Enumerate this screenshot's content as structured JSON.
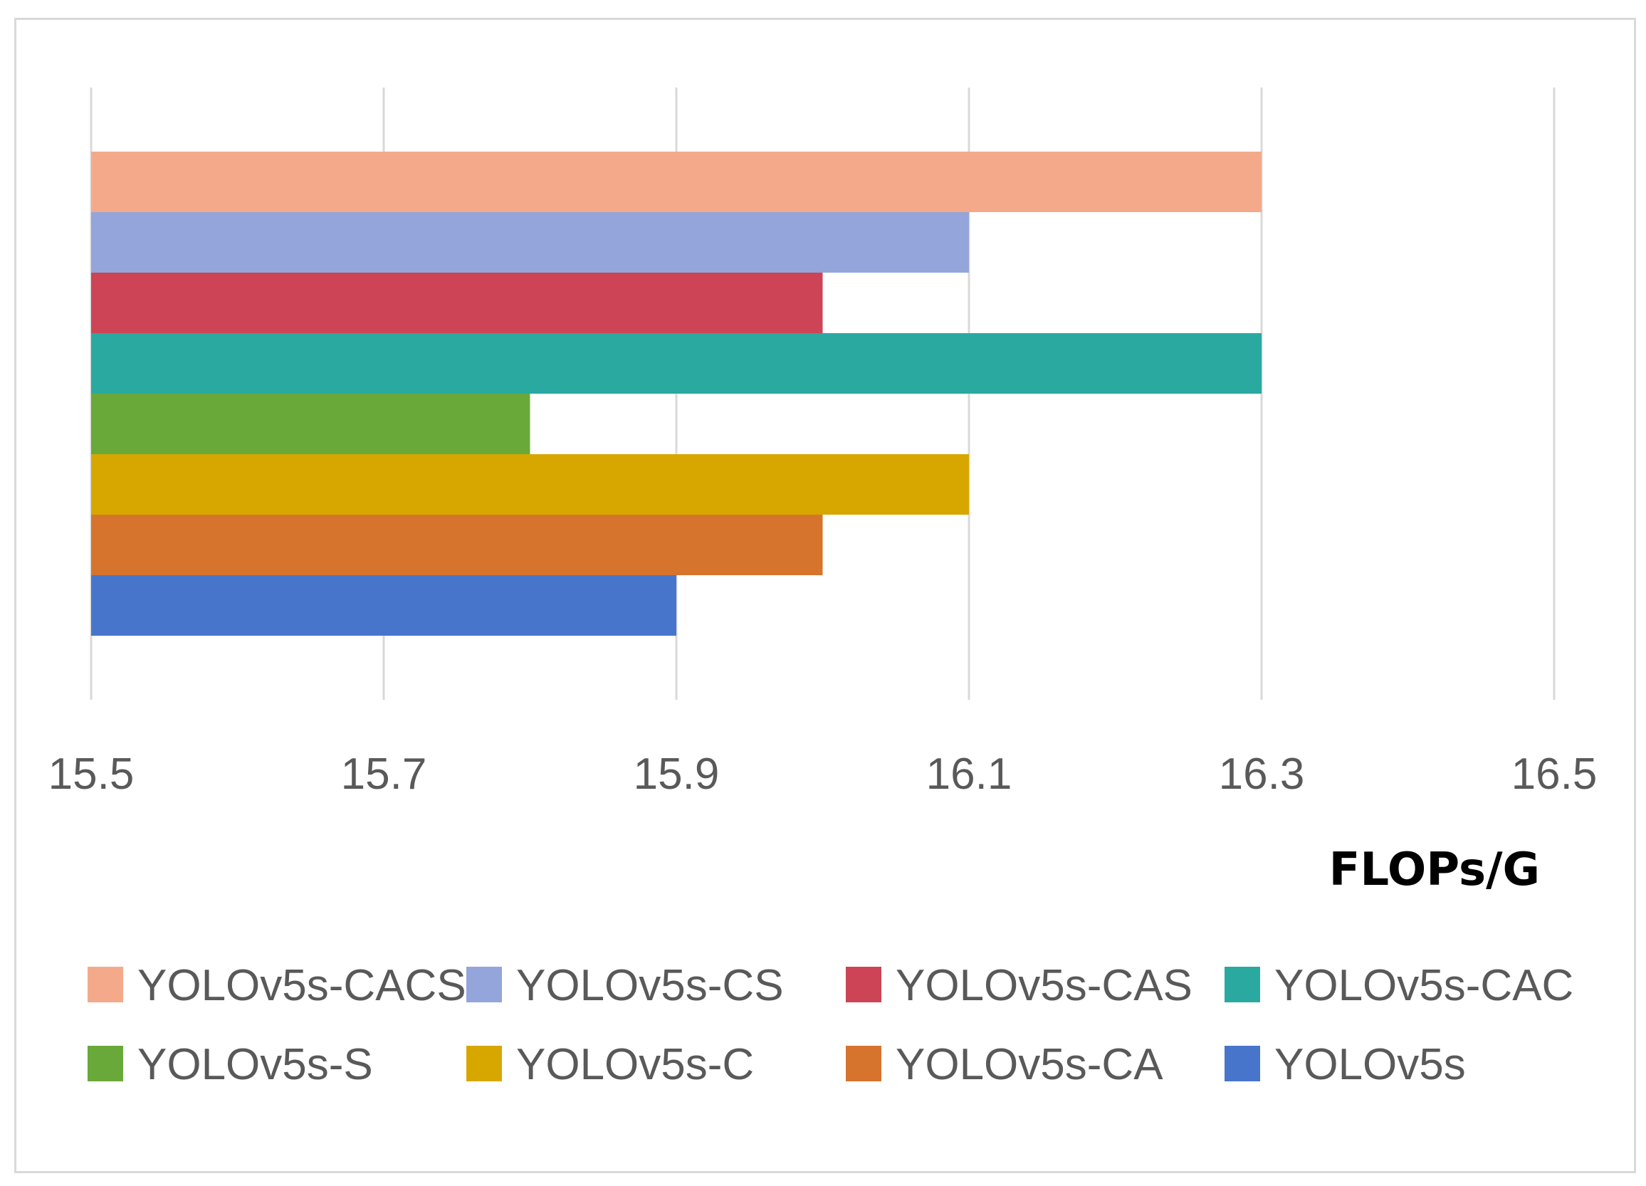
{
  "chart_data": {
    "type": "bar",
    "orientation": "horizontal",
    "title": "",
    "xlabel": "FLOPs/G",
    "ylabel": "",
    "xlim": [
      15.5,
      16.5
    ],
    "xticks": [
      "15.5",
      "15.7",
      "15.9",
      "16.1",
      "16.3",
      "16.5"
    ],
    "grid": true,
    "legend_position": "bottom",
    "series": [
      {
        "name": "YOLOv5s-CACS",
        "value": 16.3,
        "color": "#F4AA8A"
      },
      {
        "name": "YOLOv5s-CS",
        "value": 16.1,
        "color": "#93A5DA"
      },
      {
        "name": "YOLOv5s-CAS",
        "value": 16.0,
        "color": "#CC4455"
      },
      {
        "name": "YOLOv5s-CAC",
        "value": 16.3,
        "color": "#29A9A0"
      },
      {
        "name": "YOLOv5s-S",
        "value": 15.8,
        "color": "#69A93A"
      },
      {
        "name": "YOLOv5s-C",
        "value": 16.1,
        "color": "#D7A700"
      },
      {
        "name": "YOLOv5s-CA",
        "value": 16.0,
        "color": "#D6742D"
      },
      {
        "name": "YOLOv5s",
        "value": 15.9,
        "color": "#4775CC"
      }
    ]
  }
}
